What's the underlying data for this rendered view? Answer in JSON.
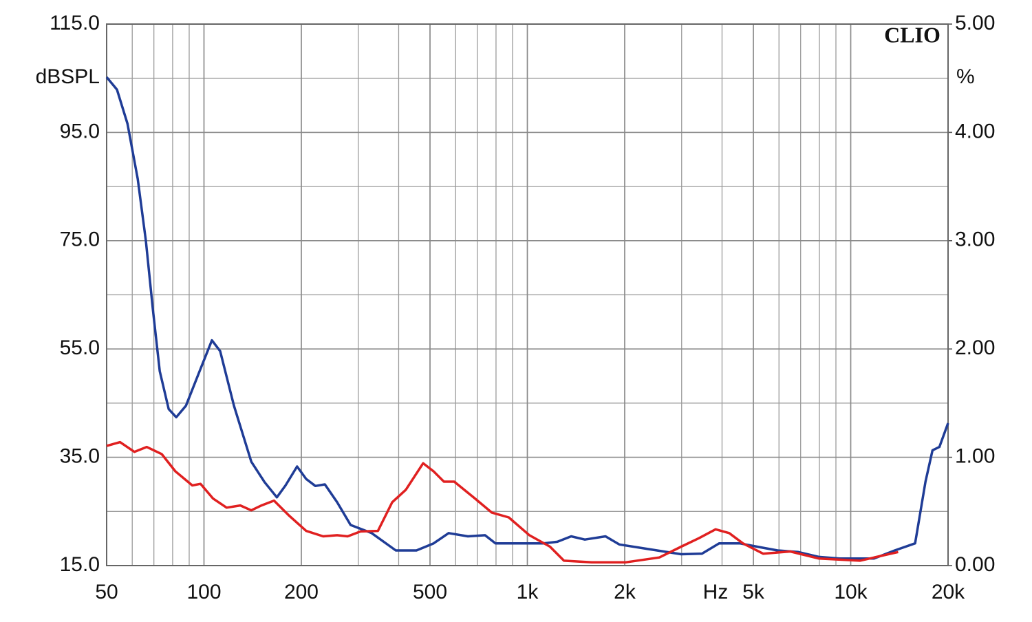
{
  "chart_data": {
    "type": "line",
    "brand": "CLIO",
    "y_label": "dBSPL",
    "y2_label": "%",
    "x_label": "Hz",
    "xscale": "log",
    "grid": true,
    "xlim": [
      50,
      20000
    ],
    "xticks": [
      50,
      100,
      200,
      500,
      {
        "value": 1000,
        "label": "1k"
      },
      {
        "value": 2000,
        "label": "2k"
      },
      {
        "value": 5000,
        "label": "5k"
      },
      {
        "value": 10000,
        "label": "10k"
      },
      {
        "value": 20000,
        "label": "20k"
      }
    ],
    "ylim": [
      15,
      115
    ],
    "yticks": [
      {
        "value": 15,
        "label": "15.0"
      },
      {
        "value": 35,
        "label": "35.0"
      },
      {
        "value": 55,
        "label": "55.0"
      },
      {
        "value": 75,
        "label": "75.0"
      },
      {
        "value": 95,
        "label": "95.0"
      },
      {
        "value": 115,
        "label": "115.0"
      }
    ],
    "y2lim": [
      0,
      5
    ],
    "y2ticks": [
      {
        "value": 0,
        "label": "0.00"
      },
      {
        "value": 1,
        "label": "1.00"
      },
      {
        "value": 2,
        "label": "2.00"
      },
      {
        "value": 3,
        "label": "3.00"
      },
      {
        "value": 4,
        "label": "4.00"
      },
      {
        "value": 5,
        "label": "5.00"
      }
    ],
    "series": [
      {
        "color": "#1f3c96",
        "x": [
          50,
          53.8,
          58,
          62.4,
          66.1,
          69.5,
          73,
          77.8,
          82.1,
          87.9,
          96.9,
          105.8,
          112.2,
          123.8,
          140,
          154,
          168,
          178.7,
          194,
          207,
          221,
          236.5,
          258,
          284,
          330,
          392,
          454,
          513,
          571,
          655,
          740,
          797,
          1122,
          1238,
          1366,
          1506,
          1745,
          1924,
          2340,
          2990,
          3465,
          3918,
          4539,
          5130,
          5943,
          6885,
          7976,
          9230,
          11800,
          13680,
          15820,
          17030,
          17900,
          18800,
          20000
        ],
        "values": [
          105.2,
          102.9,
          96.6,
          86.4,
          75,
          62.3,
          50.9,
          43.9,
          42.4,
          44.5,
          50.9,
          56.6,
          54.6,
          44.5,
          34.2,
          30.4,
          27.6,
          29.8,
          33.3,
          31,
          29.7,
          30,
          26.7,
          22.5,
          21,
          17.8,
          17.8,
          19.1,
          21,
          20.4,
          20.6,
          19.1,
          19.1,
          19.4,
          20.4,
          19.8,
          20.4,
          18.9,
          18.1,
          17.1,
          17.2,
          19.1,
          19.1,
          18.5,
          17.8,
          17.5,
          16.6,
          16.3,
          16.3,
          17.8,
          19.1,
          30.5,
          36.3,
          36.9,
          41.3
        ]
      },
      {
        "color": "#e02020",
        "x": [
          50,
          55,
          60.9,
          66.5,
          74,
          81.6,
          92,
          97.6,
          106.6,
          117.5,
          129.5,
          140,
          150.6,
          164.7,
          183.5,
          207,
          233.6,
          258,
          278,
          305,
          345,
          382,
          421,
          476,
          513,
          552,
          594,
          688,
          776,
          876,
          1015,
          1175,
          1298,
          1581,
          2011,
          2560,
          2990,
          3380,
          3820,
          4210,
          4640,
          5360,
          6500,
          7976,
          10680,
          14020
        ],
        "values": [
          37.1,
          37.8,
          36,
          36.9,
          35.6,
          32.4,
          29.8,
          30.1,
          27.4,
          25.7,
          26.1,
          25.2,
          26.1,
          27,
          24.2,
          21.4,
          20.4,
          20.6,
          20.4,
          21.3,
          21.4,
          26.7,
          29,
          33.9,
          32.4,
          30.5,
          30.5,
          27.4,
          24.8,
          23.9,
          20.6,
          18.5,
          15.9,
          15.6,
          15.6,
          16.5,
          18.5,
          20,
          21.7,
          21,
          19.1,
          17.2,
          17.6,
          16.3,
          15.9,
          17.5
        ]
      }
    ]
  }
}
